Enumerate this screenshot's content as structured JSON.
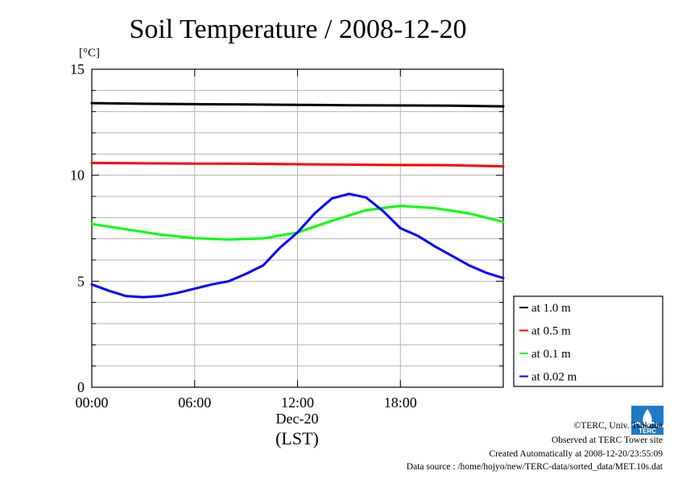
{
  "chart_data": {
    "type": "line",
    "title": "Soil Temperature / 2008-12-20",
    "ylabel": "[°C]",
    "xlabel": "(LST)",
    "date_label": "Dec-20",
    "ylim": [
      0,
      15
    ],
    "y_major_ticks": [
      0,
      5,
      10,
      15
    ],
    "y_tick_labels": [
      "0",
      "5",
      "10",
      "15"
    ],
    "y_minor_step": 1,
    "xlim": [
      0,
      24
    ],
    "x_ticks": [
      0,
      6,
      12,
      18
    ],
    "x_tick_labels": [
      "00:00",
      "06:00",
      "12:00",
      "18:00"
    ],
    "grid": true,
    "legend_position": "right, below plot top",
    "series": [
      {
        "name": "at 1.0 m",
        "color": "#000000",
        "points": [
          [
            0,
            13.4
          ],
          [
            3,
            13.37
          ],
          [
            6,
            13.35
          ],
          [
            9,
            13.34
          ],
          [
            12,
            13.32
          ],
          [
            15,
            13.3
          ],
          [
            18,
            13.29
          ],
          [
            21,
            13.28
          ],
          [
            24,
            13.25
          ]
        ]
      },
      {
        "name": "at 0.5 m",
        "color": "#ff0000",
        "points": [
          [
            0,
            10.58
          ],
          [
            3,
            10.56
          ],
          [
            6,
            10.55
          ],
          [
            9,
            10.54
          ],
          [
            12,
            10.52
          ],
          [
            15,
            10.5
          ],
          [
            18,
            10.48
          ],
          [
            21,
            10.47
          ],
          [
            24,
            10.42
          ]
        ]
      },
      {
        "name": "at 0.1 m",
        "color": "#00ff00",
        "points": [
          [
            0,
            7.7
          ],
          [
            2,
            7.45
          ],
          [
            4,
            7.2
          ],
          [
            6,
            7.03
          ],
          [
            8,
            6.97
          ],
          [
            10,
            7.02
          ],
          [
            12,
            7.3
          ],
          [
            14,
            7.85
          ],
          [
            16,
            8.35
          ],
          [
            18,
            8.55
          ],
          [
            20,
            8.45
          ],
          [
            22,
            8.2
          ],
          [
            24,
            7.8
          ]
        ]
      },
      {
        "name": "at 0.02 m",
        "color": "#0000ff",
        "points": [
          [
            0,
            4.85
          ],
          [
            1,
            4.55
          ],
          [
            2,
            4.3
          ],
          [
            3,
            4.25
          ],
          [
            4,
            4.3
          ],
          [
            5,
            4.45
          ],
          [
            6,
            4.65
          ],
          [
            7,
            4.85
          ],
          [
            8,
            5.0
          ],
          [
            9,
            5.35
          ],
          [
            10,
            5.75
          ],
          [
            11,
            6.6
          ],
          [
            12,
            7.3
          ],
          [
            13,
            8.2
          ],
          [
            14,
            8.9
          ],
          [
            15,
            9.12
          ],
          [
            16,
            8.95
          ],
          [
            17,
            8.3
          ],
          [
            18,
            7.5
          ],
          [
            19,
            7.15
          ],
          [
            20,
            6.65
          ],
          [
            21,
            6.2
          ],
          [
            22,
            5.75
          ],
          [
            23,
            5.4
          ],
          [
            24,
            5.15
          ]
        ]
      }
    ]
  },
  "credits": {
    "copyright": "©TERC, Univ. Tsukuba",
    "observed": "Observed at TERC Tower site",
    "created": "Created Automatically at 2008-12-20/23:55:09",
    "source": "Data source : /home/hojyo/new/TERC-data/sorted_data/MET.10s.dat"
  },
  "logo": {
    "text": "TERC",
    "color": "#1e78c8"
  }
}
